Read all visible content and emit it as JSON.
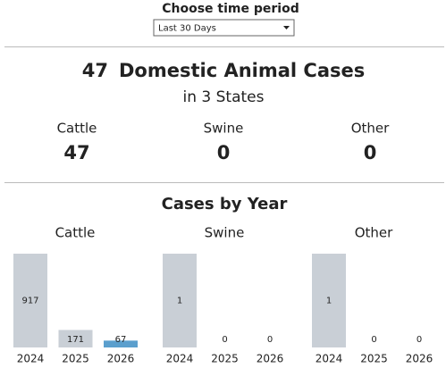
{
  "controls": {
    "label": "Choose time period",
    "selected": "Last 30 Days"
  },
  "summary": {
    "count": 47,
    "title": "Domestic Animal Cases",
    "subtitle": "in 3 States",
    "groups": [
      {
        "name": "Cattle",
        "value": 47
      },
      {
        "name": "Swine",
        "value": 0
      },
      {
        "name": "Other",
        "value": 0
      }
    ]
  },
  "section_title": "Cases by Year",
  "chart_data": [
    {
      "type": "bar",
      "title": "Cattle",
      "categories": [
        "2024",
        "2025",
        "2026"
      ],
      "values": [
        917,
        171,
        67
      ],
      "colors": [
        "#c9cfd6",
        "#c9cfd6",
        "#5b9fcd"
      ]
    },
    {
      "type": "bar",
      "title": "Swine",
      "categories": [
        "2024",
        "2025",
        "2026"
      ],
      "values": [
        1,
        0,
        0
      ],
      "colors": [
        "#c9cfd6",
        "#c9cfd6",
        "#5b9fcd"
      ]
    },
    {
      "type": "bar",
      "title": "Other",
      "categories": [
        "2024",
        "2025",
        "2026"
      ],
      "values": [
        1,
        0,
        0
      ],
      "colors": [
        "#c9cfd6",
        "#c9cfd6",
        "#5b9fcd"
      ]
    }
  ]
}
